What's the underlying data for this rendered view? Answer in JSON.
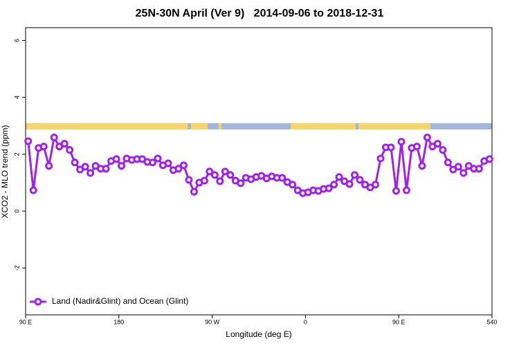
{
  "chart_data": {
    "type": "line",
    "title": "25N-30N April (Ver 9)   2014-09-06 to 2018-12-31",
    "x_label": "Longitude (deg E)",
    "y_label": "XCO2 - MLO trend (ppm)",
    "x": [
      92.5,
      97.5,
      102.5,
      107.5,
      112.5,
      117.5,
      122.5,
      127.5,
      132.5,
      137.5,
      142.5,
      147.5,
      152.5,
      157.5,
      162.5,
      167.5,
      172.5,
      177.5,
      182.5,
      187.5,
      192.5,
      197.5,
      202.5,
      207.5,
      212.5,
      217.5,
      222.5,
      227.5,
      232.5,
      237.5,
      242.5,
      247.5,
      252.5,
      257.5,
      262.5,
      267.5,
      272.5,
      277.5,
      282.5,
      287.5,
      292.5,
      297.5,
      302.5,
      307.5,
      312.5,
      317.5,
      322.5,
      327.5,
      332.5,
      337.5,
      342.5,
      347.5,
      352.5,
      357.5,
      362.5,
      367.5,
      372.5,
      377.5,
      382.5,
      387.5,
      392.5,
      397.5,
      402.5,
      407.5,
      412.5,
      417.5,
      422.5,
      427.5,
      432.5,
      437.5,
      442.5,
      447.5,
      452.5,
      457.5,
      462.5,
      467.5,
      472.5,
      477.5,
      482.5,
      487.5,
      492.5,
      497.5,
      502.5,
      507.5,
      512.5,
      517.5,
      522.5,
      527.5,
      532.5,
      537.5
    ],
    "series": [
      {
        "name": "Land (Nadir&Glint) and Ocean (Glint)",
        "color": "#a020f0",
        "values": [
          2.46,
          0.73,
          2.22,
          2.27,
          1.59,
          2.59,
          2.27,
          2.37,
          2.15,
          1.71,
          1.46,
          1.56,
          1.34,
          1.59,
          1.49,
          1.49,
          1.76,
          1.83,
          1.59,
          1.85,
          1.8,
          1.83,
          1.83,
          1.73,
          1.71,
          1.85,
          1.61,
          1.68,
          1.44,
          1.49,
          1.61,
          1.1,
          0.68,
          1.0,
          1.07,
          1.39,
          1.27,
          1.05,
          1.39,
          1.27,
          1.07,
          0.98,
          1.17,
          1.12,
          1.2,
          1.24,
          1.15,
          1.22,
          1.17,
          1.17,
          1.02,
          0.93,
          0.73,
          0.63,
          0.66,
          0.73,
          0.71,
          0.78,
          0.8,
          0.93,
          1.2,
          1.05,
          0.95,
          1.27,
          1.1,
          0.93,
          0.83,
          0.93,
          1.85,
          2.24,
          2.24,
          0.71,
          2.44,
          0.73,
          2.22,
          2.27,
          1.59,
          2.59,
          2.27,
          2.37,
          2.15,
          1.71,
          1.46,
          1.56,
          1.34,
          1.59,
          1.49,
          1.49,
          1.76,
          1.83
        ]
      }
    ],
    "xlim": [
      90,
      540
    ],
    "xticks": [
      {
        "value": 90,
        "label": "90 E"
      },
      180,
      {
        "value": 270,
        "label": "90 W"
      },
      {
        "value": 360,
        "label": "0"
      },
      {
        "value": 450,
        "label": "90 E"
      },
      540
    ],
    "ylim": [
      -3.65,
      6.45
    ],
    "yticks": [
      -2,
      0,
      2,
      4,
      6
    ],
    "legend": "bottom-left"
  }
}
